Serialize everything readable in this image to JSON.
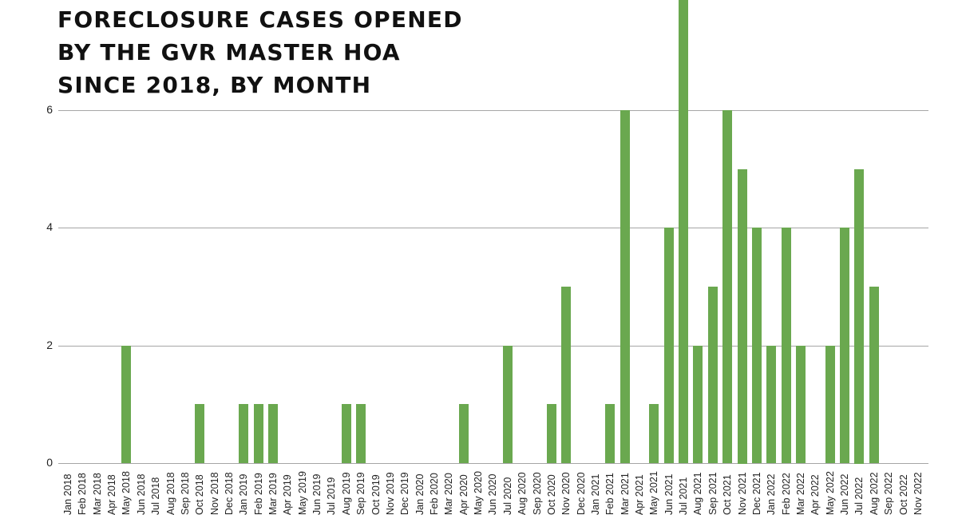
{
  "title": "FORECLOSURE CASES OPENED\nBY THE GVR MASTER HOA\nSINCE 2018, BY MONTH",
  "colors": {
    "bar": "#6aa84f",
    "grid": "#a6a6a6",
    "text": "#222222"
  },
  "chart_data": {
    "type": "bar",
    "title": "FORECLOSURE CASES OPENED BY THE GVR MASTER HOA SINCE 2018, BY MONTH",
    "xlabel": "",
    "ylabel": "",
    "ylim": [
      0,
      8
    ],
    "yticks": [
      0,
      2,
      4,
      6
    ],
    "grid": true,
    "legend": null,
    "categories": [
      "2018 Jan",
      "2018 Feb",
      "2018 Mar",
      "2018 Apr",
      "2018 May",
      "2018 Jun",
      "2018 Jul",
      "2018 Aug",
      "2018 Sep",
      "2018 Oct",
      "2018 Nov",
      "2018 Dec",
      "2019 Jan",
      "2019 Feb",
      "2019 Mar",
      "2019 Apr",
      "2019 May",
      "2019 Jun",
      "2019 Jul",
      "2019 Aug",
      "2019 Sep",
      "2019 Oct",
      "2019 Nov",
      "2019 Dec",
      "2020 Jan",
      "2020 Feb",
      "2020 Mar",
      "2020 Apr",
      "2020 May",
      "2020 Jun",
      "2020 Jul",
      "2020 Aug",
      "2020 Sep",
      "2020 Oct",
      "2020 Nov",
      "2020 Dec",
      "2021 Jan",
      "2021 Feb",
      "2021 Mar",
      "2021 Apr",
      "2021 May",
      "2021 Jun",
      "2021 Jul",
      "2021 Aug",
      "2021 Sep",
      "2021 Oct",
      "2021 Nov",
      "2021 Dec",
      "2022 Jan",
      "2022 Feb",
      "2022 Mar",
      "2022 Apr",
      "2022 May",
      "2022 Jun",
      "2022 Jul",
      "2022 Aug",
      "2022 Sep",
      "2022 Oct",
      "2022 Nov"
    ],
    "values": [
      0,
      0,
      0,
      0,
      2,
      0,
      0,
      0,
      0,
      1,
      0,
      0,
      1,
      1,
      1,
      0,
      0,
      0,
      0,
      1,
      1,
      0,
      0,
      0,
      0,
      0,
      0,
      1,
      0,
      0,
      2,
      0,
      0,
      1,
      3,
      0,
      0,
      1,
      6,
      0,
      1,
      4,
      8,
      2,
      3,
      6,
      5,
      4,
      2,
      4,
      2,
      0,
      2,
      4,
      5,
      3,
      0,
      0,
      0
    ],
    "annotations": [
      "2021 Jul bar extends beyond top of visible area"
    ]
  }
}
